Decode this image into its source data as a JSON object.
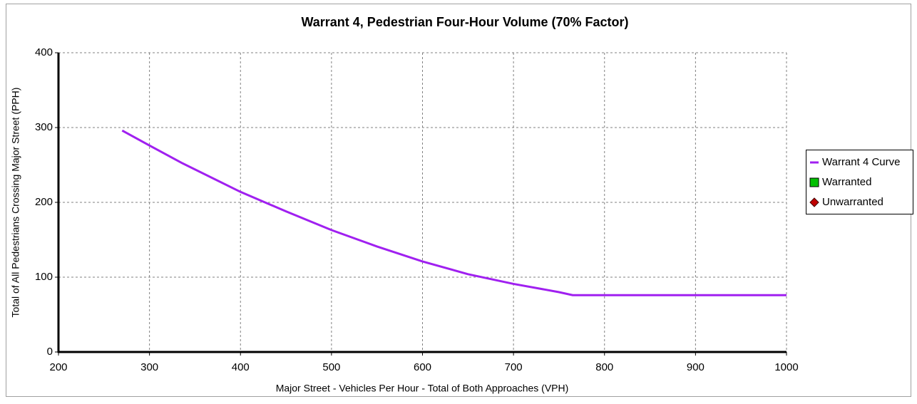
{
  "chart_data": {
    "type": "line",
    "title": "Warrant 4, Pedestrian Four-Hour Volume (70% Factor)",
    "x_label": "Major Street - Vehicles Per Hour - Total of Both Approaches (VPH)",
    "y_label": "Total of All Pedestrians Crossing Major Street (PPH)",
    "xlim": [
      200,
      1000
    ],
    "ylim": [
      0,
      400
    ],
    "xticks": [
      200,
      300,
      400,
      500,
      600,
      700,
      800,
      900,
      1000
    ],
    "yticks": [
      0,
      100,
      200,
      300,
      400
    ],
    "grid": true,
    "legend": "right",
    "series": [
      {
        "name": "Warrant 4 Curve",
        "color": "#a020f0",
        "marker": "line",
        "x": [
          270,
          300,
          335,
          400,
          450,
          500,
          550,
          600,
          650,
          700,
          750,
          765,
          1000
        ],
        "values": [
          296,
          276,
          253,
          214,
          188,
          163,
          141,
          121,
          104,
          91,
          80,
          76,
          76
        ]
      },
      {
        "name": "Warranted",
        "color": "#00c000",
        "marker": "square",
        "x": [],
        "values": []
      },
      {
        "name": "Unwarranted",
        "color": "#c00000",
        "marker": "diamond",
        "x": [],
        "values": []
      }
    ]
  }
}
